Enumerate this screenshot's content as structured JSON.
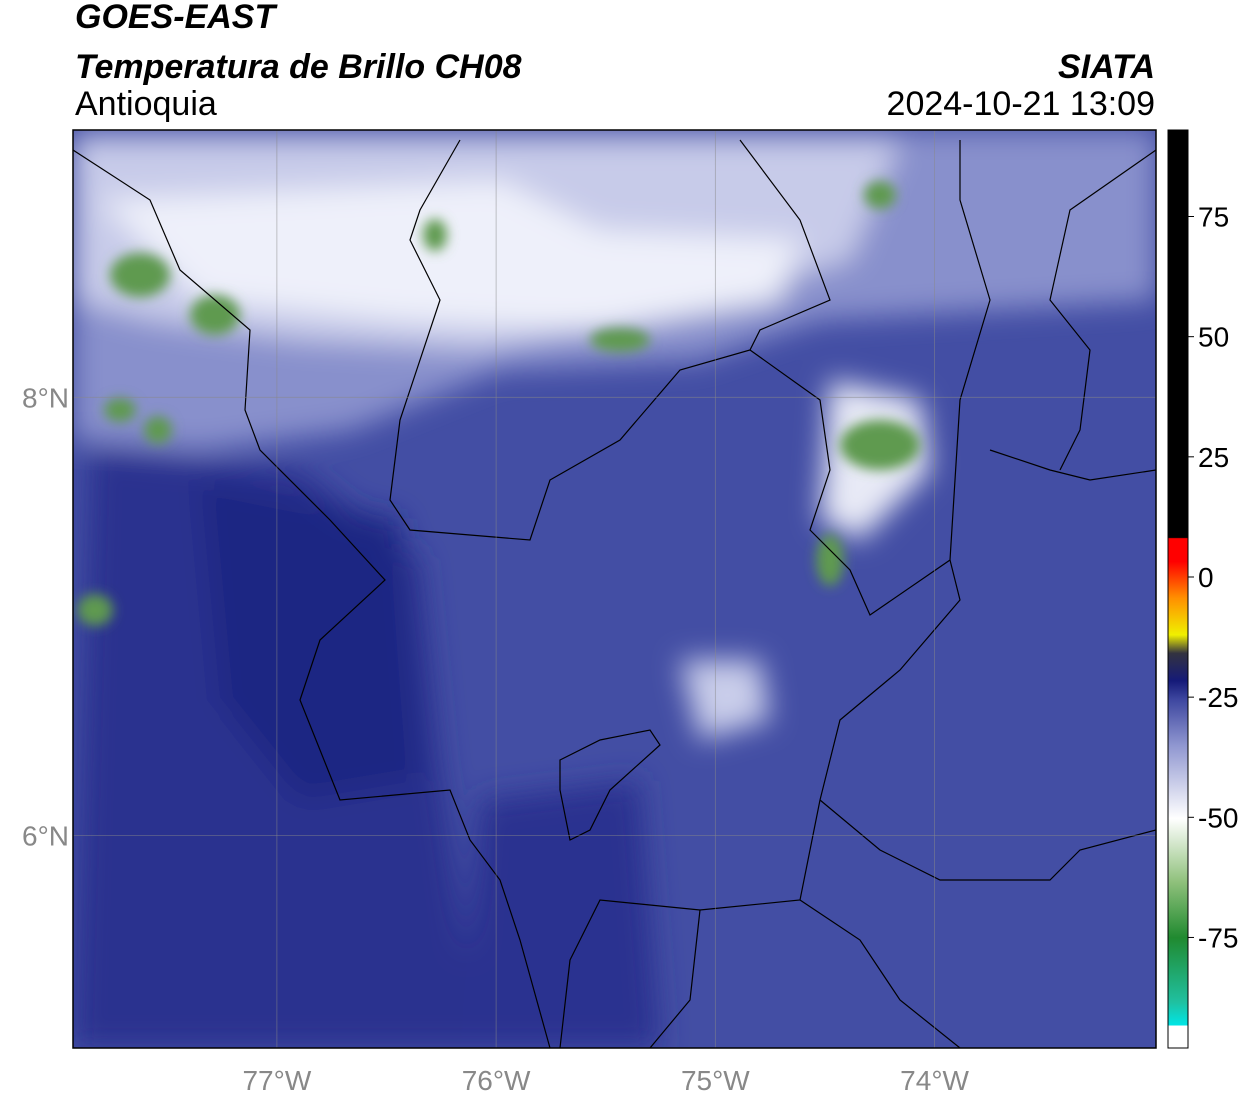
{
  "header": {
    "title": "GOES-EAST",
    "subtitle": "Temperatura de Brillo CH08",
    "region": "Antioquia",
    "source": "SIATA",
    "datetime": "2024-10-21 13:09"
  },
  "map": {
    "xlim": [
      -77.93,
      -72.99
    ],
    "ylim": [
      5.03,
      9.22
    ],
    "xticks": [
      {
        "value": -77,
        "label": "77°W"
      },
      {
        "value": -76,
        "label": "76°W"
      },
      {
        "value": -75,
        "label": "75°W"
      },
      {
        "value": -74,
        "label": "74°W"
      }
    ],
    "yticks": [
      {
        "value": 6,
        "label": "6°N"
      },
      {
        "value": 8,
        "label": "8°N"
      }
    ],
    "grid": true
  },
  "colorbar": {
    "clim": [
      -98,
      93
    ],
    "ticks": [
      -75,
      -50,
      -25,
      0,
      25,
      50,
      75
    ]
  }
}
